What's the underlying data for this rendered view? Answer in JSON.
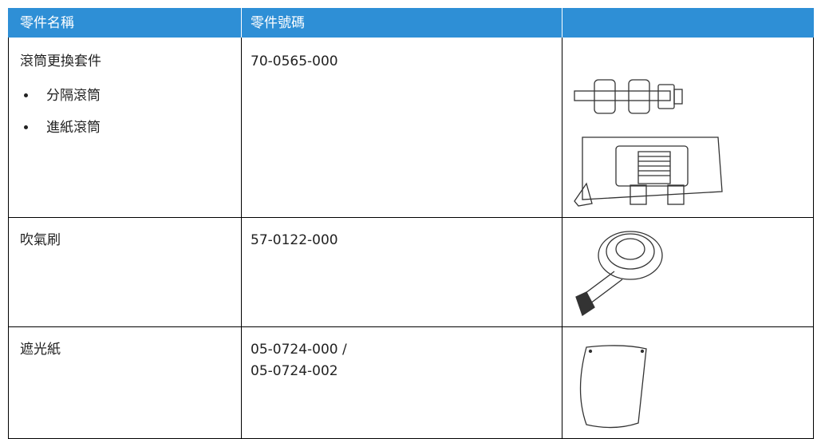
{
  "table": {
    "header": [
      "零件名稱",
      "零件號碼"
    ],
    "rows": [
      {
        "name": "滾筒更換套件",
        "items": [
          "分隔滾筒",
          "進紙滾筒"
        ],
        "part_number": [
          "70-0565-000"
        ]
      },
      {
        "name": "吹氣刷",
        "part_number": [
          "57-0122-000"
        ]
      },
      {
        "name": "遮光紙",
        "part_number": [
          "05-0724-000 /",
          "05-0724-002"
        ]
      }
    ]
  }
}
